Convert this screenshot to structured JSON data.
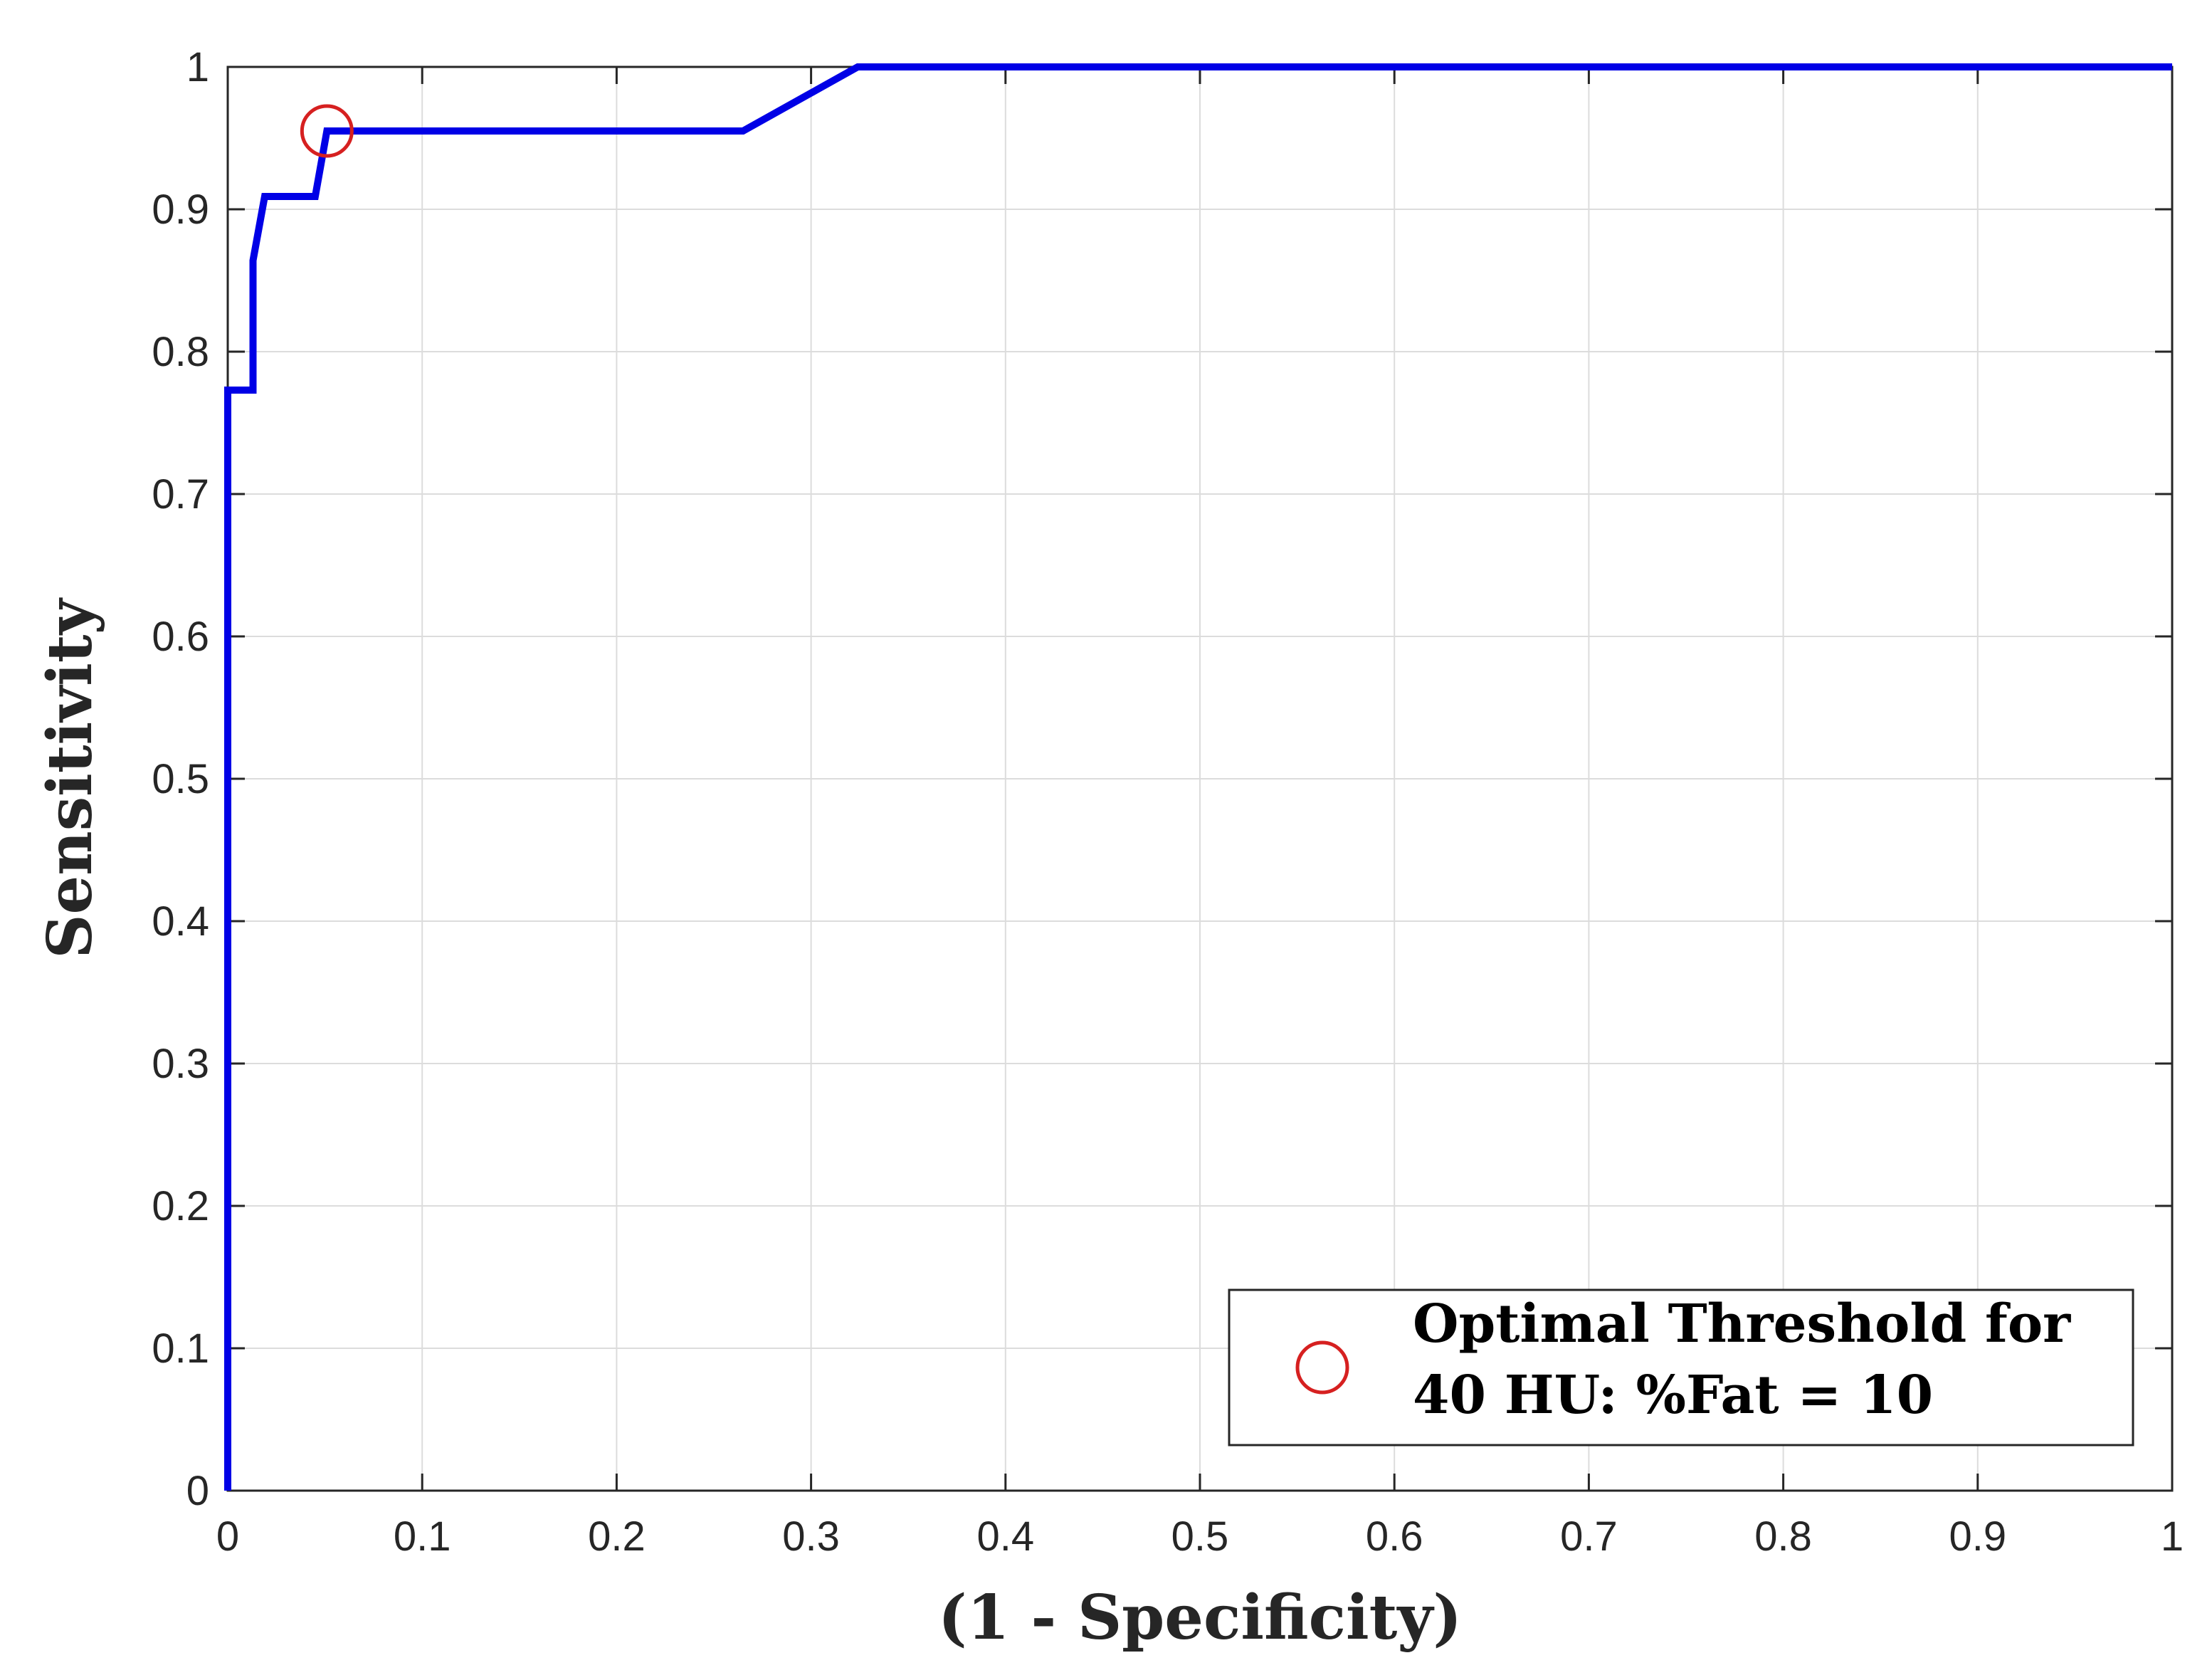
{
  "chart_data": {
    "type": "line",
    "xlabel": "(1 - Specificity)",
    "ylabel": "Sensitivity",
    "xlim": [
      0,
      1
    ],
    "ylim": [
      0,
      1
    ],
    "x_ticks": [
      0,
      0.1,
      0.2,
      0.3,
      0.4,
      0.5,
      0.6,
      0.7,
      0.8,
      0.9,
      1
    ],
    "y_ticks": [
      0,
      0.1,
      0.2,
      0.3,
      0.4,
      0.5,
      0.6,
      0.7,
      0.8,
      0.9,
      1
    ],
    "x_tick_labels": [
      "0",
      "0.1",
      "0.2",
      "0.3",
      "0.4",
      "0.5",
      "0.6",
      "0.7",
      "0.8",
      "0.9",
      "1"
    ],
    "y_tick_labels": [
      "0",
      "0.1",
      "0.2",
      "0.3",
      "0.4",
      "0.5",
      "0.6",
      "0.7",
      "0.8",
      "0.9",
      "1"
    ],
    "grid": true,
    "legend_position": "bottom-right",
    "series": [
      {
        "color": "#0000e6",
        "x": [
          0,
          0,
          0.013,
          0.013,
          0.019,
          0.045,
          0.051,
          0.265,
          0.324,
          1
        ],
        "y": [
          0,
          0.773,
          0.773,
          0.864,
          0.909,
          0.909,
          0.955,
          0.955,
          1,
          1
        ]
      }
    ],
    "markers": [
      {
        "shape": "circle",
        "color": "#d62020",
        "x": 0.051,
        "y": 0.955,
        "legend_lines": [
          "Optimal Threshold for",
          "40 HU: %Fat = 10"
        ]
      }
    ]
  }
}
